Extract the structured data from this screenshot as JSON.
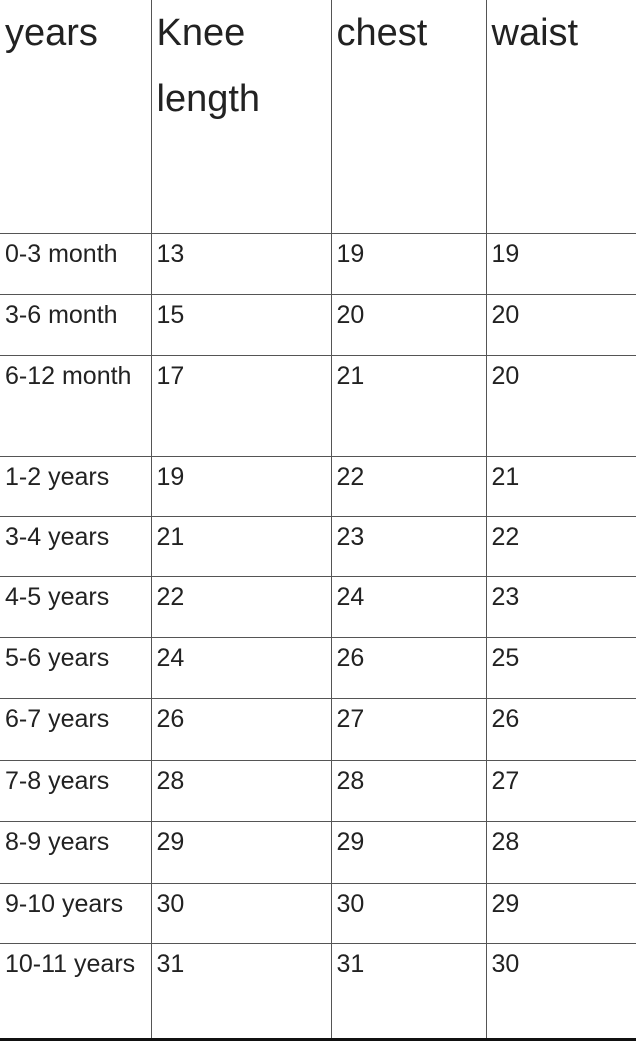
{
  "table": {
    "headers": [
      "years",
      "Knee length",
      "chest",
      "waist"
    ],
    "rows": [
      [
        "0-3 month",
        "13",
        "19",
        "19"
      ],
      [
        "3-6 month",
        "15",
        "20",
        "20"
      ],
      [
        "6-12 month",
        "17",
        "21",
        "20"
      ],
      [
        "1-2 years",
        "19",
        "22",
        "21"
      ],
      [
        "3-4 years",
        "21",
        "23",
        "22"
      ],
      [
        "4-5 years",
        "22",
        "24",
        "23"
      ],
      [
        "5-6 years",
        "24",
        "26",
        "25"
      ],
      [
        "6-7 years",
        "26",
        "27",
        "26"
      ],
      [
        "7-8 years",
        "28",
        "28",
        "27"
      ],
      [
        "8-9 years",
        "29",
        "29",
        "28"
      ],
      [
        "9-10 years",
        "30",
        "30",
        "29"
      ],
      [
        "10-11 years",
        "31",
        "31",
        "30"
      ]
    ]
  }
}
